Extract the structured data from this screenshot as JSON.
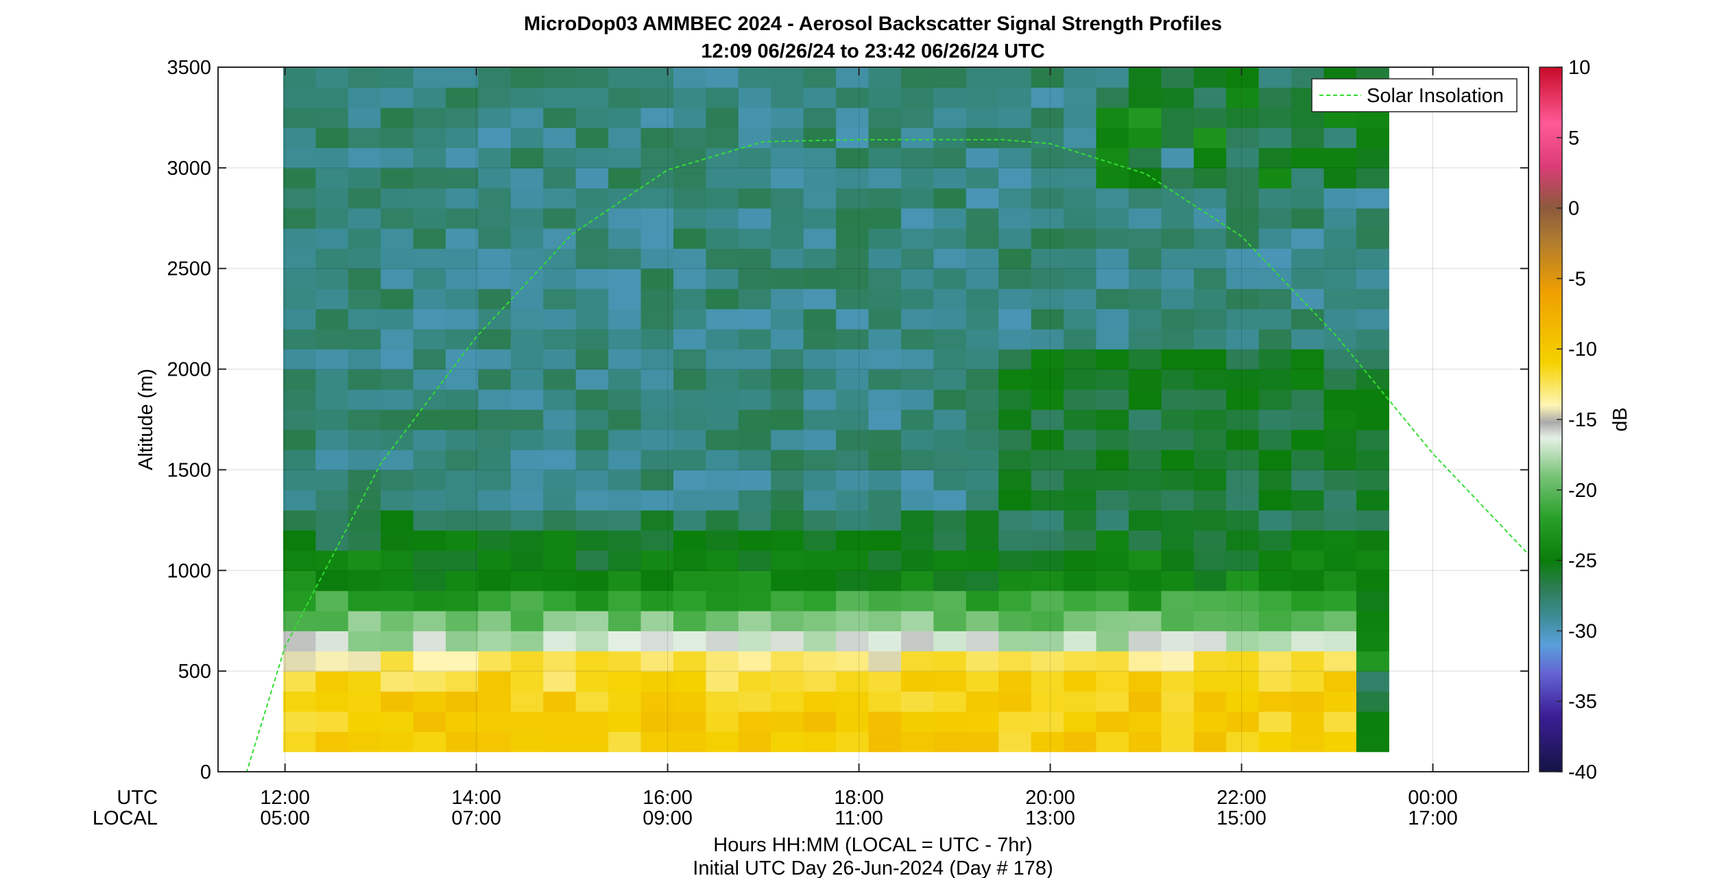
{
  "chart_data": {
    "type": "heatmap",
    "title": "MicroDop03 AMMBEC 2024 - Aerosol Backscatter Signal Strength Profiles",
    "subtitle": "12:09 06/26/24 to 23:42 06/26/24  UTC",
    "ylabel": "Altitude (m)",
    "xlabel": "Hours HH:MM  (LOCAL = UTC - 7hr)",
    "footer": "Initial UTC Day 26-Jun-2024 (Day # 178)",
    "x_row_labels": {
      "utc": "UTC",
      "local": "LOCAL"
    },
    "x_ticks_hours": [
      12,
      14,
      16,
      18,
      20,
      22,
      24
    ],
    "x_tick_labels_utc": [
      "12:00",
      "14:00",
      "16:00",
      "18:00",
      "20:00",
      "22:00",
      "00:00"
    ],
    "x_tick_labels_local": [
      "05:00",
      "07:00",
      "09:00",
      "11:00",
      "13:00",
      "15:00",
      "17:00"
    ],
    "xlim_hours": [
      11.3,
      25.0
    ],
    "ylim": [
      0,
      3500
    ],
    "y_ticks": [
      0,
      500,
      1000,
      1500,
      2000,
      2500,
      3000,
      3500
    ],
    "y_tick_labels": [
      "0",
      "500",
      "1000",
      "1500",
      "2000",
      "2500",
      "3000",
      "3500"
    ],
    "grid": true,
    "colorbar": {
      "label": "dB",
      "range": [
        -40,
        10
      ],
      "ticks": [
        10,
        5,
        0,
        -5,
        -10,
        -15,
        -20,
        -25,
        -30,
        -35,
        -40
      ],
      "tick_labels": [
        "10",
        "5",
        "0",
        "-5",
        "-10",
        "-15",
        "-20",
        "-25",
        "-30",
        "-35",
        "-40"
      ],
      "stops": [
        {
          "v": -40,
          "c": "#141446"
        },
        {
          "v": -36,
          "c": "#3c1e96"
        },
        {
          "v": -33,
          "c": "#6464d2"
        },
        {
          "v": -31,
          "c": "#5aa0dc"
        },
        {
          "v": -29,
          "c": "#3c8c96"
        },
        {
          "v": -27,
          "c": "#2d7d55"
        },
        {
          "v": -25,
          "c": "#0a7d0a"
        },
        {
          "v": -22,
          "c": "#28a028"
        },
        {
          "v": -19,
          "c": "#78c378"
        },
        {
          "v": -16.3,
          "c": "#e6f0e6"
        },
        {
          "v": -15.2,
          "c": "#aaaaaa"
        },
        {
          "v": -14,
          "c": "#fff5b4"
        },
        {
          "v": -11,
          "c": "#f5d200"
        },
        {
          "v": -6,
          "c": "#f0a000"
        },
        {
          "v": -2,
          "c": "#aa7832"
        },
        {
          "v": 0,
          "c": "#8c5a3c"
        },
        {
          "v": 3,
          "c": "#dc3c78"
        },
        {
          "v": 6,
          "c": "#ff5a96"
        },
        {
          "v": 10,
          "c": "#c80a28"
        }
      ]
    },
    "series": [
      {
        "name": "Solar Insolation",
        "color": "#33dd33",
        "dashed": true,
        "x_hours": [
          11.3,
          11.6,
          12.0,
          13.0,
          14.0,
          15.0,
          16.0,
          17.0,
          18.0,
          19.0,
          19.5,
          20.0,
          21.0,
          22.0,
          23.0,
          24.0,
          25.0
        ],
        "y": [
          0,
          0,
          620,
          1530,
          2160,
          2670,
          2990,
          3130,
          3140,
          3140,
          3140,
          3120,
          2970,
          2660,
          2160,
          1580,
          1080
        ]
      }
    ],
    "legend": {
      "position": "top-right"
    },
    "heatmap": {
      "x_hours": [
        12.15,
        12.49,
        12.83,
        13.17,
        13.51,
        13.85,
        14.19,
        14.53,
        14.87,
        15.21,
        15.55,
        15.89,
        16.23,
        16.57,
        16.91,
        17.25,
        17.59,
        17.93,
        18.27,
        18.61,
        18.95,
        19.29,
        19.63,
        19.97,
        20.31,
        20.65,
        20.99,
        21.33,
        21.67,
        22.01,
        22.35,
        22.69,
        23.03,
        23.37
      ],
      "y_rows_m": [
        50,
        150,
        250,
        350,
        450,
        550,
        650,
        750,
        850,
        950,
        1050,
        1150,
        1250,
        1350,
        1450,
        1550,
        1650,
        1750,
        1850,
        1950,
        2050,
        2150,
        2250,
        2350,
        2450,
        2550,
        2650,
        2750,
        2850,
        2950,
        3050,
        3150,
        3250,
        3350,
        3450
      ],
      "bins_y_m": [
        [
          100,
          200,
          300,
          400,
          500,
          600,
          700,
          800,
          900,
          1000,
          1100,
          1200,
          1300,
          1400
        ],
        [
          1500,
          2000,
          2500,
          3000,
          3500
        ]
      ],
      "profile_db": {
        "0-100": "no data",
        "100-550": "-10 to -14 (aerosol layer, yellow)",
        "550-900": "-15 to -22",
        "900-1300": "-24 to -27",
        "1300-3500": "-28 to -30"
      }
    }
  }
}
